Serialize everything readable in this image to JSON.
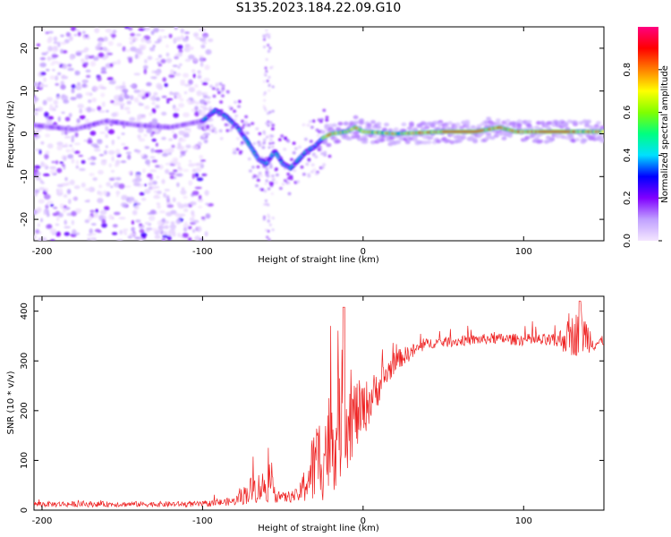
{
  "title": "S135.2023.184.22.09.G10",
  "chart_data": [
    {
      "type": "heatmap",
      "xlabel": "Height of straight line (km)",
      "ylabel": "Frequency (Hz)",
      "xlim": [
        -205,
        150
      ],
      "ylim": [
        -25,
        25
      ],
      "x_ticks": [
        -200,
        -100,
        0,
        100
      ],
      "y_ticks": [
        -20,
        -10,
        0,
        10,
        20
      ],
      "colorbar": {
        "label": "Normalized spectral amplitude",
        "range": [
          0.0,
          1.0
        ],
        "ticks": [
          "0.0",
          "0.2",
          "0.4",
          "0.6",
          "0.8"
        ],
        "tick_values": [
          0.0,
          0.2,
          0.4,
          0.6,
          0.8
        ],
        "colors": [
          "#f4e6ff",
          "#c0a0ff",
          "#8000ff",
          "#0000ff",
          "#00e0ff",
          "#00ff80",
          "#80ff00",
          "#ffff00",
          "#ff8000",
          "#ff0000",
          "#ff0080"
        ]
      },
      "ridge": [
        {
          "x": -205,
          "f": 2.0
        },
        {
          "x": -180,
          "f": 1.0
        },
        {
          "x": -160,
          "f": 3.0
        },
        {
          "x": -140,
          "f": 2.0
        },
        {
          "x": -120,
          "f": 1.5
        },
        {
          "x": -100,
          "f": 3.0
        },
        {
          "x": -92,
          "f": 5.5
        },
        {
          "x": -85,
          "f": 4.0
        },
        {
          "x": -78,
          "f": 1.5
        },
        {
          "x": -70,
          "f": -3.0
        },
        {
          "x": -65,
          "f": -6.0
        },
        {
          "x": -60,
          "f": -7.0
        },
        {
          "x": -55,
          "f": -4.0
        },
        {
          "x": -50,
          "f": -7.0
        },
        {
          "x": -45,
          "f": -8.0
        },
        {
          "x": -40,
          "f": -6.0
        },
        {
          "x": -35,
          "f": -4.0
        },
        {
          "x": -30,
          "f": -3.0
        },
        {
          "x": -25,
          "f": -1.0
        },
        {
          "x": -20,
          "f": 0.0
        },
        {
          "x": -10,
          "f": 0.5
        },
        {
          "x": -5,
          "f": 1.5
        },
        {
          "x": 0,
          "f": 0.5
        },
        {
          "x": 20,
          "f": 0.0
        },
        {
          "x": 50,
          "f": 0.5
        },
        {
          "x": 70,
          "f": 0.5
        },
        {
          "x": 85,
          "f": 1.5
        },
        {
          "x": 95,
          "f": 0.5
        },
        {
          "x": 110,
          "f": 0.5
        },
        {
          "x": 130,
          "f": 0.5
        },
        {
          "x": 150,
          "f": 0.5
        }
      ]
    },
    {
      "type": "line",
      "xlabel": "Height of straight line (km)",
      "ylabel": "SNR (10 * v/v)",
      "xlim": [
        -205,
        150
      ],
      "ylim": [
        0,
        430
      ],
      "x_ticks": [
        -200,
        -100,
        0,
        100
      ],
      "y_ticks": [
        0,
        100,
        200,
        300,
        400
      ],
      "color": "#ee2222",
      "envelope": [
        {
          "x": -205,
          "base": 12,
          "noise": 8
        },
        {
          "x": -100,
          "base": 12,
          "noise": 8
        },
        {
          "x": -80,
          "base": 18,
          "noise": 12
        },
        {
          "x": -70,
          "base": 40,
          "noise": 40
        },
        {
          "x": -60,
          "base": 50,
          "noise": 50
        },
        {
          "x": -50,
          "base": 25,
          "noise": 15
        },
        {
          "x": -40,
          "base": 30,
          "noise": 20
        },
        {
          "x": -30,
          "base": 90,
          "noise": 120
        },
        {
          "x": -20,
          "base": 140,
          "noise": 160
        },
        {
          "x": -10,
          "base": 180,
          "noise": 140
        },
        {
          "x": 0,
          "base": 200,
          "noise": 80
        },
        {
          "x": 10,
          "base": 250,
          "noise": 50
        },
        {
          "x": 20,
          "base": 300,
          "noise": 30
        },
        {
          "x": 40,
          "base": 335,
          "noise": 15
        },
        {
          "x": 80,
          "base": 345,
          "noise": 15
        },
        {
          "x": 120,
          "base": 340,
          "noise": 20
        },
        {
          "x": 130,
          "base": 350,
          "noise": 60
        },
        {
          "x": 136,
          "base": 360,
          "noise": 70
        },
        {
          "x": 145,
          "base": 335,
          "noise": 20
        },
        {
          "x": 150,
          "base": 340,
          "noise": 15
        }
      ]
    }
  ]
}
